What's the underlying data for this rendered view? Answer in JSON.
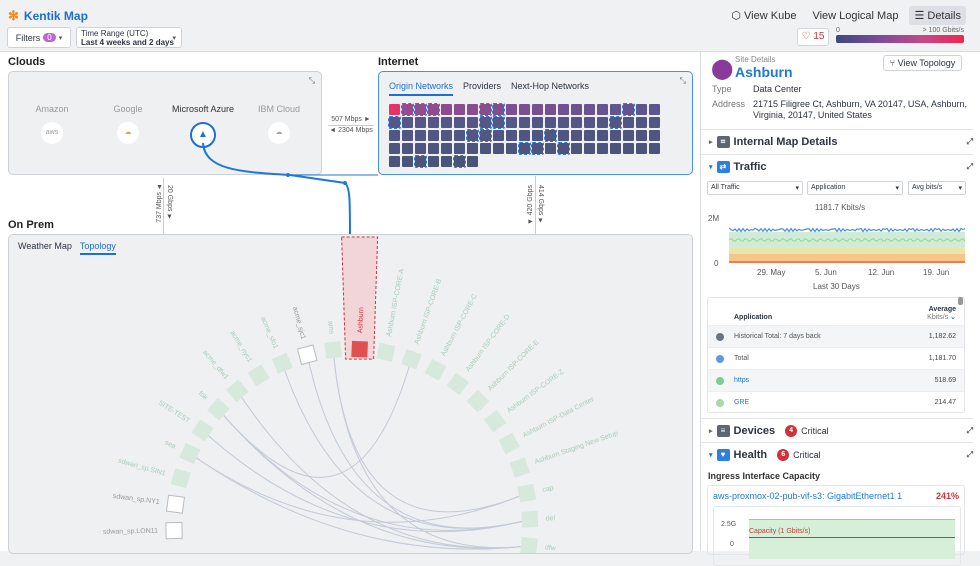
{
  "header": {
    "app_title": "Kentik Map",
    "view_kube": "View Kube",
    "view_logical_map": "View Logical Map",
    "details": "Details",
    "filters_label": "Filters",
    "filters_count": "0",
    "time_range_label": "Time Range (UTC)",
    "time_range_value": "Last 4 weeks and 2 days",
    "alerts_count": "15",
    "legend_min": "0",
    "legend_max": "> 100 Gbits/s"
  },
  "clouds": {
    "title": "Clouds",
    "providers": [
      {
        "name": "Amazon",
        "icon": "aws"
      },
      {
        "name": "Google",
        "icon": "google-cloud"
      },
      {
        "name": "Microsoft Azure",
        "icon": "azure",
        "selected": true
      },
      {
        "name": "IBM Cloud",
        "icon": "ibm-cloud"
      }
    ]
  },
  "links": {
    "cloud_internet_out": "507 Mbps ►",
    "cloud_internet_in": "◄ 2304 Mbps",
    "cloud_onprem_up": "737 Mbps ▲",
    "cloud_onprem_down": "20 Gbps ▼",
    "internet_onprem_up": "414 Gbps ▼",
    "internet_onprem_down": "◄ 420 Gbps"
  },
  "internet": {
    "title": "Internet",
    "tabs": [
      "Origin Networks",
      "Providers",
      "Next-Hop Networks"
    ],
    "active_tab": 0,
    "highlighted_cells": [
      1,
      2,
      3,
      7,
      8,
      18,
      21,
      28,
      29,
      38,
      48,
      49,
      54,
      73,
      74,
      76,
      86,
      89
    ]
  },
  "onprem": {
    "title": "On Prem",
    "tabs": [
      "Weather Map",
      "Topology"
    ],
    "active_tab": 1,
    "nodes": [
      {
        "label": "sdwan_sp.LON11",
        "style": "empty"
      },
      {
        "label": "sdwan_sp.NY1",
        "style": "empty"
      },
      {
        "label": "sdwan_sp.SIN1"
      },
      {
        "label": "sea"
      },
      {
        "label": "SITE-TEST"
      },
      {
        "label": "fok"
      },
      {
        "label": "acme_dfw1"
      },
      {
        "label": "acme_nyc1"
      },
      {
        "label": "acme_sfo1"
      },
      {
        "label": "acme_sjc1",
        "style": "empty"
      },
      {
        "label": "ams"
      },
      {
        "label": "Ashburn",
        "style": "selected"
      },
      {
        "label": "Ashburn ISP-CORE-A"
      },
      {
        "label": "Ashburn ISP-CORE-B"
      },
      {
        "label": "Ashburn ISP-CORE-C"
      },
      {
        "label": "Ashburn ISP-CORE-D"
      },
      {
        "label": "Ashburn ISP-CORE-E"
      },
      {
        "label": "Ashburn ISP-CORE-Z"
      },
      {
        "label": "Ashburn ISP-Data Center"
      },
      {
        "label": "Ashburn Staging New Setup"
      },
      {
        "label": "cap"
      },
      {
        "label": "del"
      },
      {
        "label": "dfw"
      }
    ]
  },
  "details": {
    "site_details_label": "Site Details",
    "site_name": "Ashburn",
    "view_topology": "View Topology",
    "type_label": "Type",
    "type_value": "Data Center",
    "address_label": "Address",
    "address_value": "21715 Filigree Ct, Ashburn, VA 20147, USA, Ashburn, Virginia, 20147, United States",
    "internal_map": "Internal Map Details",
    "traffic": "Traffic",
    "traffic_filters": [
      "All Traffic",
      "Application",
      "Avg bits/s"
    ],
    "chart_value": "1181.7 Kbits/s",
    "chart_y": [
      "2M",
      "0"
    ],
    "chart_x": [
      "29. May",
      "5. Jun",
      "12. Jun",
      "19. Jun"
    ],
    "chart_caption": "Last 30 Days",
    "table_headers": {
      "app": "Application",
      "avg": "Average",
      "unit": "Kbits/s"
    },
    "table_rows": [
      {
        "name": "Historical Total: 7 days back",
        "value": "1,182.62",
        "color": "#6b7280"
      },
      {
        "name": "Total",
        "value": "1,181.70",
        "color": "#5b9be6"
      },
      {
        "name": "https",
        "value": "518.69",
        "color": "#7ccf8f",
        "link": true
      },
      {
        "name": "GRE",
        "value": "214.47",
        "color": "#a5dba6",
        "link": true
      }
    ],
    "devices": "Devices",
    "devices_critical": "4",
    "critical_label": "Critical",
    "health": "Health",
    "health_critical": "6",
    "ingress_title": "Ingress Interface Capacity",
    "interface_name": "aws-proxmox-02-pub-vif-s3: GigabitEthernet1 1",
    "interface_pct": "241%",
    "cap_y": [
      "2.5G",
      "0"
    ],
    "capacity_label": "Capacity (1 Gbits/s)"
  }
}
